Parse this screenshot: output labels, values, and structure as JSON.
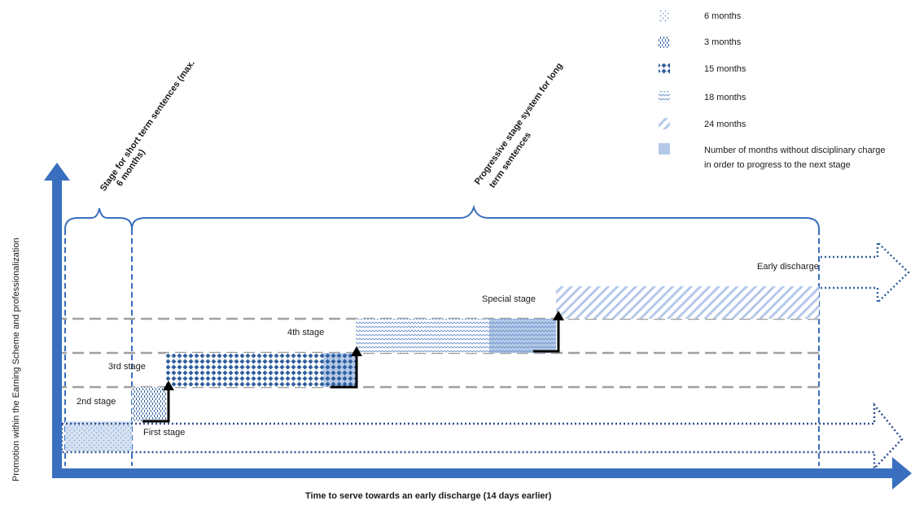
{
  "legend": [
    {
      "pattern": "dots-6",
      "label": "6 months"
    },
    {
      "pattern": "dashes-3",
      "label": "3 months"
    },
    {
      "pattern": "diamond-15",
      "label": "15 months"
    },
    {
      "pattern": "zigzag-18",
      "label": "18 months"
    },
    {
      "pattern": "diag-24",
      "label": "24 months"
    },
    {
      "pattern": "solid-light",
      "label_line1": "Number of months without disciplinary charge",
      "label_line2": "in order to progress to the next stage"
    }
  ],
  "brackets": {
    "short_line1": "Stage for short term sentences (max.",
    "short_line2": "6 months)",
    "long_line1": "Progressive stage system for long",
    "long_line2": "term sentences"
  },
  "stages": {
    "first": "First stage",
    "second": "2nd stage",
    "third": "3rd stage",
    "fourth": "4th stage",
    "special": "Special stage",
    "early": "Early discharge"
  },
  "axes": {
    "y_label": "Promotion within the Earning Scheme and professionalization",
    "x_label": "Time to serve towards an early discharge (14 days earlier)"
  },
  "colors": {
    "axis_blue": "#3a6fbf",
    "pattern_blue": "#2f5f9e",
    "light_fill": "#b4c9e8",
    "dash_gray": "#a0a0a0",
    "dotted_blue": "#2f4f8e"
  }
}
